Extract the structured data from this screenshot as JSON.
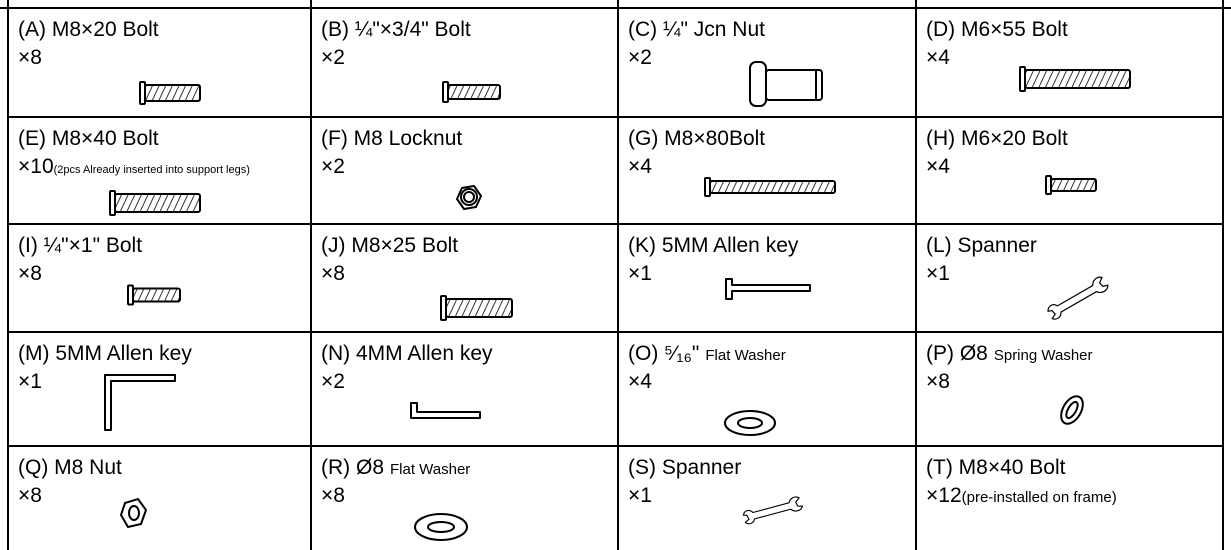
{
  "table": {
    "cells": [
      [
        {
          "label": "(A) M8×20 Bolt",
          "qty": "×8"
        },
        {
          "label": "(B) ¼\"×3/4\" Bolt",
          "qty": "×2"
        },
        {
          "label": "(C) ¼\" Jcn Nut",
          "qty": "×2"
        },
        {
          "label": "(D) M6×55 Bolt",
          "qty": "×4"
        }
      ],
      [
        {
          "label": "(E) M8×40 Bolt",
          "qty": "×10",
          "qty_note": "(2pcs Already inserted into support legs)"
        },
        {
          "label": "(F) M8 Locknut",
          "qty": "×2"
        },
        {
          "label": "(G) M8×80Bolt",
          "qty": "×4"
        },
        {
          "label": "(H) M6×20 Bolt",
          "qty": "×4"
        }
      ],
      [
        {
          "label": "(I) ¼\"×1\" Bolt",
          "qty": "×8"
        },
        {
          "label": "(J) M8×25 Bolt",
          "qty": "×8"
        },
        {
          "label": "(K) 5MM Allen key",
          "qty": "×1"
        },
        {
          "label": "(L) Spanner",
          "qty": "×1"
        }
      ],
      [
        {
          "label": "(M) 5MM Allen key",
          "qty": "×1"
        },
        {
          "label": "(N) 4MM Allen key",
          "qty": "×2"
        },
        {
          "label": "(O) ⁵⁄₁₆\"",
          "label_small": "Flat Washer",
          "qty": "×4"
        },
        {
          "label": "(P) Ø8",
          "label_small": "Spring Washer",
          "qty": "×8"
        }
      ],
      [
        {
          "label": "(Q) M8  Nut",
          "qty": "×8"
        },
        {
          "label": "(R) Ø8",
          "label_small": "Flat Washer",
          "qty": "×8"
        },
        {
          "label": "(S) Spanner",
          "qty": "×1"
        },
        {
          "label": "(T) M8×40 Bolt",
          "qty": "×12",
          "qty_note": "(pre-installed on frame)"
        }
      ]
    ]
  }
}
